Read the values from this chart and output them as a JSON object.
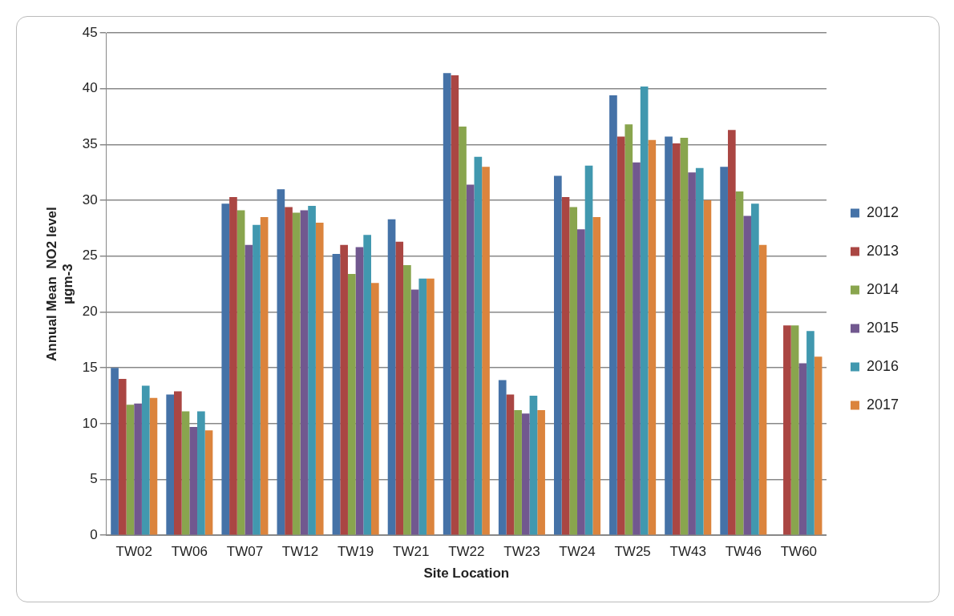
{
  "chart_data": {
    "type": "bar",
    "xlabel": "Site Location",
    "ylabel": "Annual Mean  NO2 level µgm-3",
    "categories": [
      "TW02",
      "TW06",
      "TW07",
      "TW12",
      "TW19",
      "TW21",
      "TW22",
      "TW23",
      "TW24",
      "TW25",
      "TW43",
      "TW46",
      "TW60"
    ],
    "series": [
      {
        "name": "2012",
        "color": "#4572a7",
        "values": [
          15.0,
          12.6,
          29.7,
          31.0,
          25.2,
          28.3,
          41.4,
          13.9,
          32.2,
          39.4,
          35.7,
          33.0,
          null
        ]
      },
      {
        "name": "2013",
        "color": "#aa4643",
        "values": [
          14.0,
          12.9,
          30.3,
          29.4,
          26.0,
          26.3,
          41.2,
          12.6,
          30.3,
          35.7,
          35.1,
          36.3,
          18.8
        ]
      },
      {
        "name": "2014",
        "color": "#89a54e",
        "values": [
          11.7,
          11.1,
          29.1,
          28.9,
          23.4,
          24.2,
          36.6,
          11.2,
          29.4,
          36.8,
          35.6,
          30.8,
          18.8
        ]
      },
      {
        "name": "2015",
        "color": "#71588f",
        "values": [
          11.8,
          9.7,
          26.0,
          29.1,
          25.8,
          22.0,
          31.4,
          10.9,
          27.4,
          33.4,
          32.5,
          28.6,
          15.4
        ]
      },
      {
        "name": "2016",
        "color": "#4198af",
        "values": [
          13.4,
          11.1,
          27.8,
          29.5,
          26.9,
          23.0,
          33.9,
          12.5,
          33.1,
          40.2,
          32.9,
          29.7,
          18.3
        ]
      },
      {
        "name": "2017",
        "color": "#db843d",
        "values": [
          12.3,
          9.4,
          28.5,
          28.0,
          22.6,
          23.0,
          33.0,
          11.2,
          28.5,
          35.4,
          30.0,
          26.0,
          16.0
        ]
      }
    ],
    "ylim": [
      0,
      45
    ],
    "yticks": [
      0,
      5,
      10,
      15,
      20,
      25,
      30,
      35,
      40,
      45
    ],
    "grid": "y",
    "legend": "right"
  }
}
